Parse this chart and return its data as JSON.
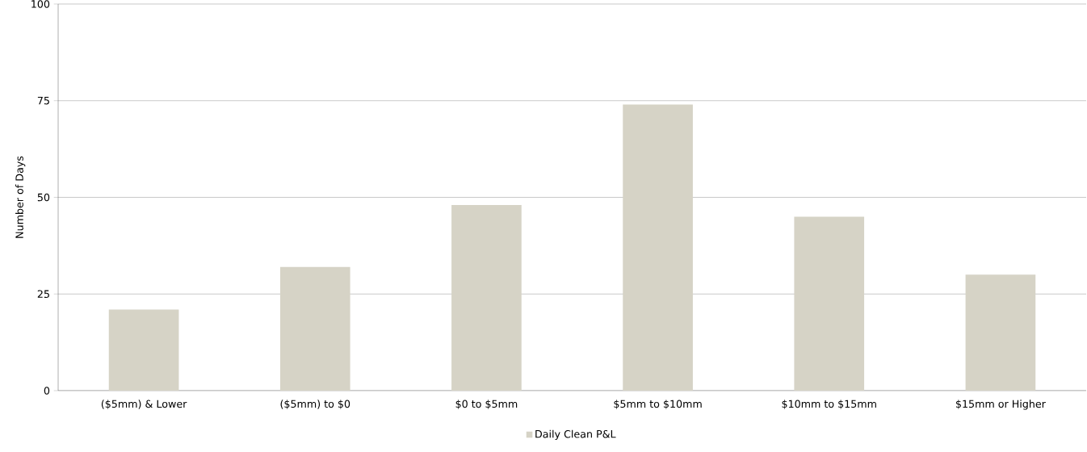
{
  "chart_data": {
    "type": "bar",
    "ylabel": "Number of Days",
    "categories": [
      "($5mm) & Lower",
      "($5mm) to $0",
      "$0 to $5mm",
      "$5mm to $10mm",
      "$10mm to $15mm",
      "$15mm or Higher"
    ],
    "series": [
      {
        "name": "Daily Clean P&L",
        "color": "#d6d3c6",
        "values": [
          21,
          32,
          48,
          74,
          45,
          30
        ]
      }
    ],
    "ylim": [
      0,
      100
    ],
    "yticks": [
      0,
      25,
      50,
      75,
      100
    ],
    "grid": "y",
    "legend": "bottom"
  }
}
